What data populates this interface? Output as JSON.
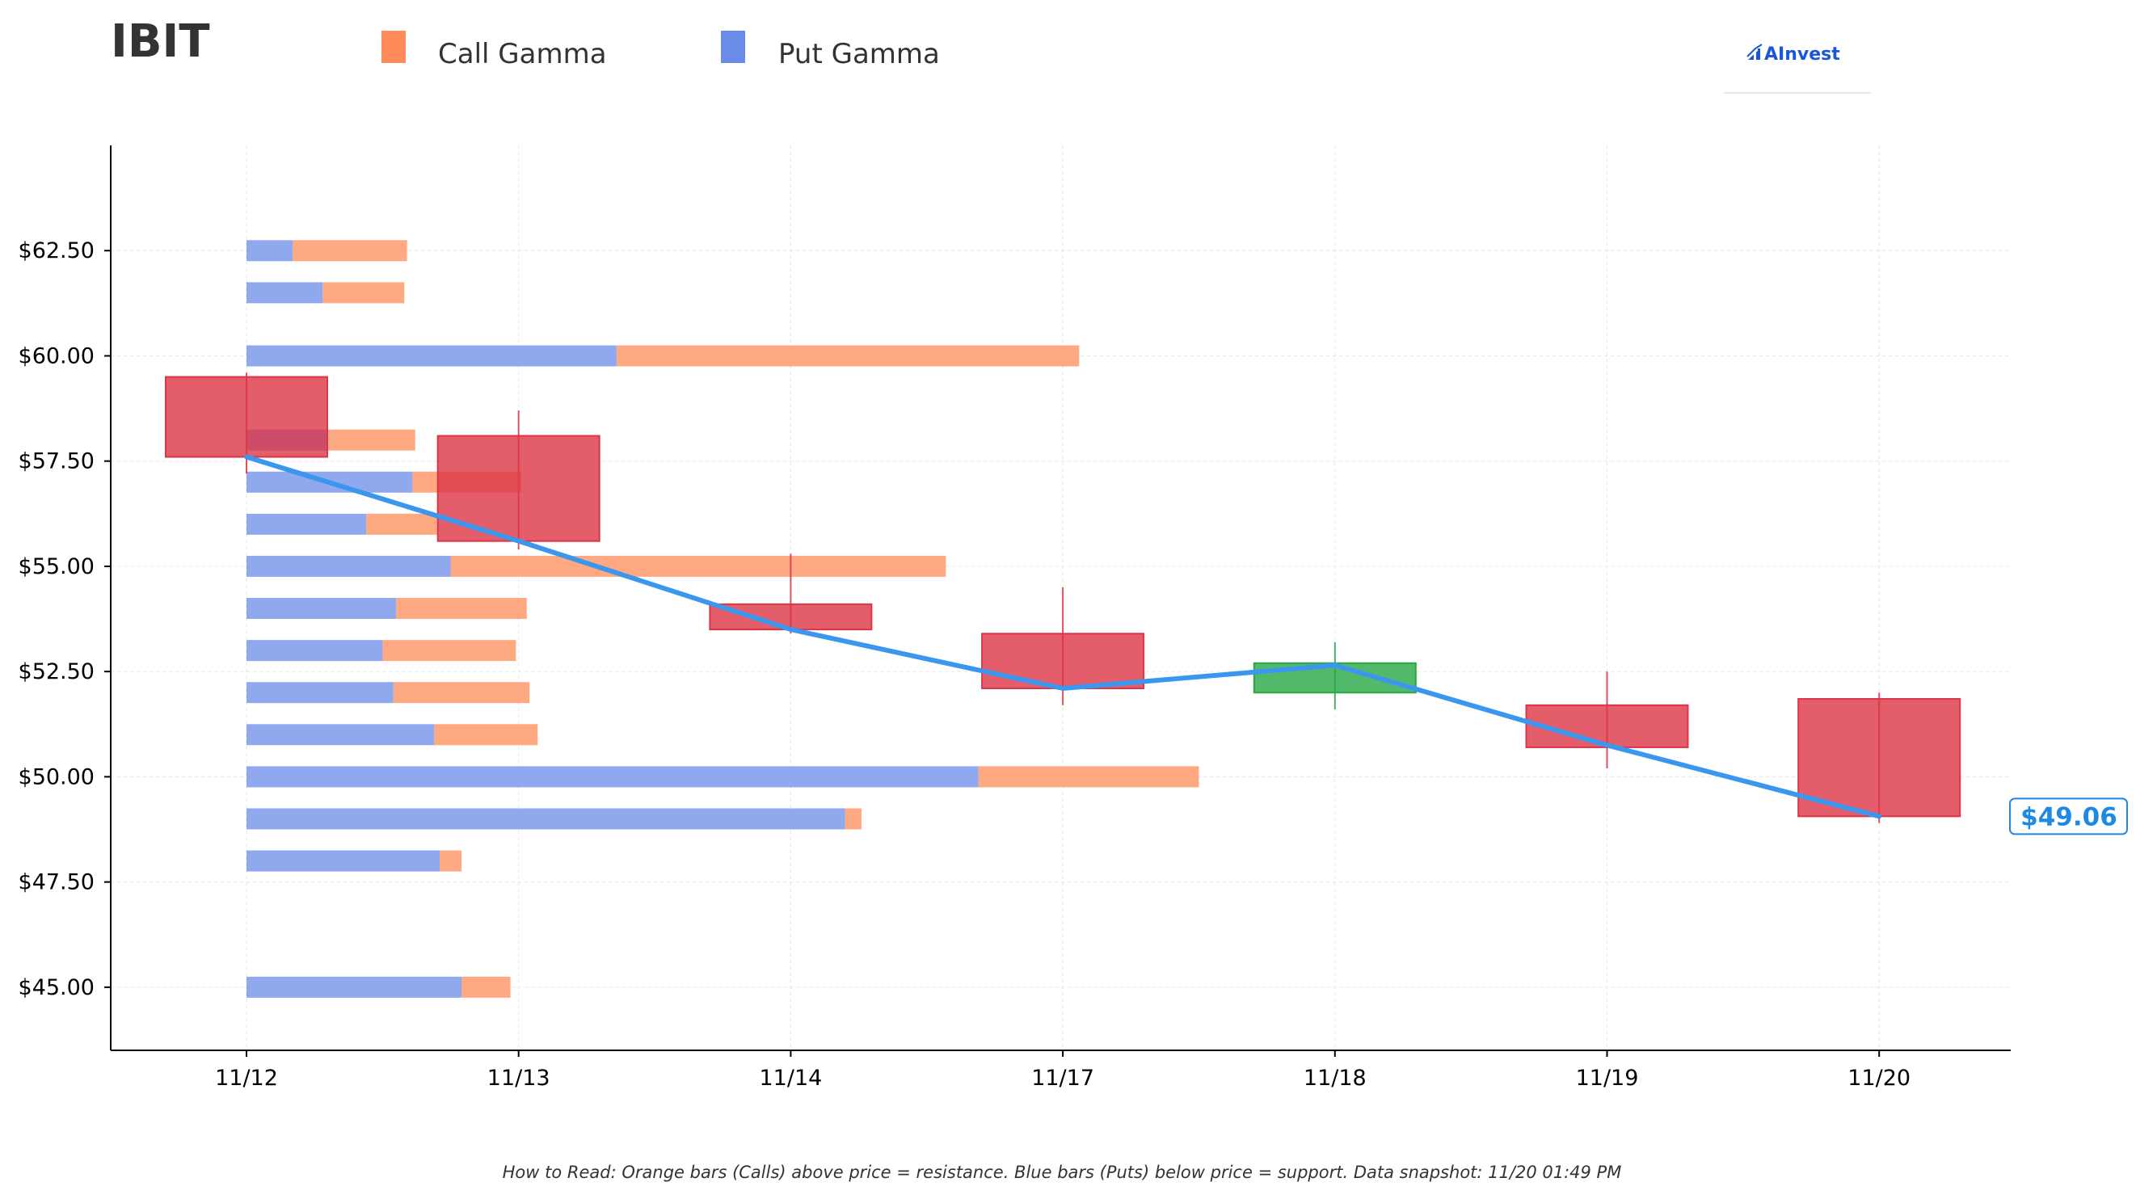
{
  "ticker": "IBIT",
  "logo": {
    "text": "AInvest"
  },
  "legend": [
    {
      "label": "Call Gamma",
      "color": "#ff8c5a"
    },
    {
      "label": "Put Gamma",
      "color": "#6b8be8"
    }
  ],
  "footnote": "How to Read: Orange bars (Calls) above price = resistance. Blue bars (Puts) below price = support. Data snapshot: 11/20 01:49 PM",
  "current_price_label": "$49.06",
  "colors": {
    "call": "#ff8c5a",
    "put": "#6b8be8",
    "down_candle": "#dc3545",
    "up_candle": "#28a745",
    "price_line": "#3b97ee",
    "price_label": "#1e88e5"
  },
  "chart_data": {
    "type": "candlestick_with_gamma_bars",
    "categories": [
      "11/12",
      "11/13",
      "11/14",
      "11/17",
      "11/18",
      "11/19",
      "11/20"
    ],
    "ylim": [
      43.5,
      65.0
    ],
    "yticks": [
      45.0,
      47.5,
      50.0,
      52.5,
      55.0,
      57.5,
      60.0,
      62.5
    ],
    "ytick_labels": [
      "$45.00",
      "$47.50",
      "$50.00",
      "$52.50",
      "$55.00",
      "$57.50",
      "$60.00",
      "$62.50"
    ],
    "grid": true,
    "candles": [
      {
        "date": "11/12",
        "open": 59.5,
        "close": 57.6,
        "high": 59.6,
        "low": 57.2
      },
      {
        "date": "11/13",
        "open": 58.1,
        "close": 55.6,
        "high": 58.7,
        "low": 55.4
      },
      {
        "date": "11/14",
        "open": 54.1,
        "close": 53.5,
        "high": 55.3,
        "low": 53.4
      },
      {
        "date": "11/17",
        "open": 53.4,
        "close": 52.1,
        "high": 54.5,
        "low": 51.7
      },
      {
        "date": "11/18",
        "open": 52.0,
        "close": 52.7,
        "high": 53.2,
        "low": 51.6
      },
      {
        "date": "11/19",
        "open": 51.7,
        "close": 50.7,
        "high": 52.5,
        "low": 50.2
      },
      {
        "date": "11/20",
        "open": 51.85,
        "close": 49.06,
        "high": 52.0,
        "low": 48.9
      }
    ],
    "price_line": [
      57.6,
      55.6,
      53.5,
      52.1,
      52.65,
      50.75,
      49.06
    ],
    "gamma_bars": [
      {
        "strike": 62.5,
        "put": 0.17,
        "call": 0.42
      },
      {
        "strike": 61.5,
        "put": 0.28,
        "call": 0.3
      },
      {
        "strike": 60.0,
        "put": 1.36,
        "call": 1.7
      },
      {
        "strike": 58.0,
        "put": 0.3,
        "call": 0.32
      },
      {
        "strike": 57.0,
        "put": 0.61,
        "call": 0.4
      },
      {
        "strike": 56.0,
        "put": 0.44,
        "call": 0.26
      },
      {
        "strike": 55.0,
        "put": 0.75,
        "call": 1.82
      },
      {
        "strike": 54.0,
        "put": 0.55,
        "call": 0.48
      },
      {
        "strike": 53.0,
        "put": 0.5,
        "call": 0.49
      },
      {
        "strike": 52.0,
        "put": 0.54,
        "call": 0.5
      },
      {
        "strike": 51.0,
        "put": 0.69,
        "call": 0.38
      },
      {
        "strike": 50.0,
        "put": 2.69,
        "call": 0.81
      },
      {
        "strike": 49.0,
        "put": 2.2,
        "call": 0.06
      },
      {
        "strike": 48.0,
        "put": 0.71,
        "call": 0.08
      },
      {
        "strike": 45.0,
        "put": 0.79,
        "call": 0.18
      }
    ]
  }
}
